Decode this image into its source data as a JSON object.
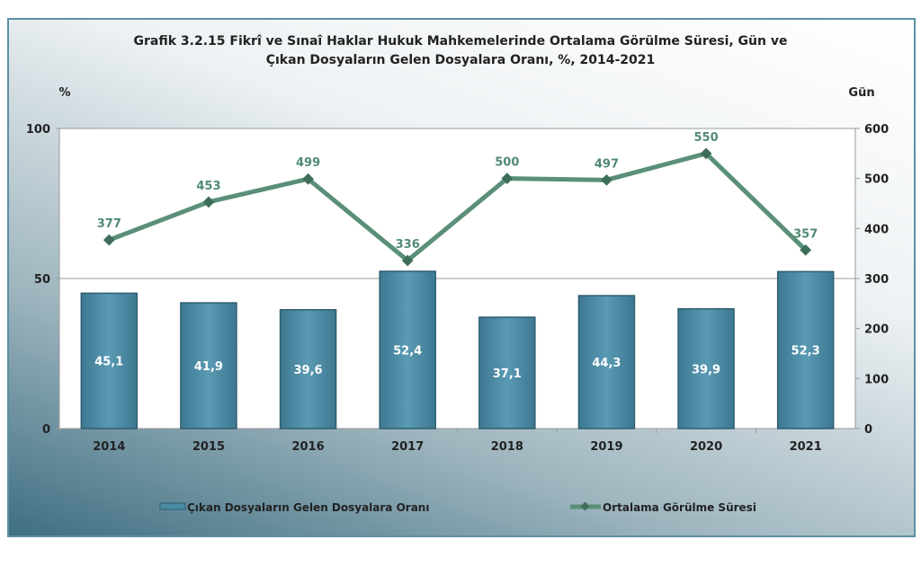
{
  "chart_data": {
    "type": "bar+line",
    "title_line1": "Grafik 3.2.15 Fikrî ve Sınaî Haklar Hukuk Mahkemelerinde Ortalama Görülme Süresi, Gün ve",
    "title_line2": "Çıkan Dosyaların Gelen Dosyalara Oranı, %, 2014-2021",
    "left_axis_label": "%",
    "right_axis_label": "Gün",
    "left_ylim": [
      0,
      100
    ],
    "right_ylim": [
      0,
      600
    ],
    "left_ticks": [
      "0",
      "50",
      "100"
    ],
    "right_ticks": [
      "0",
      "100",
      "200",
      "300",
      "400",
      "500",
      "600"
    ],
    "categories": [
      "2014",
      "2015",
      "2016",
      "2017",
      "2018",
      "2019",
      "2020",
      "2021"
    ],
    "series": [
      {
        "name": "Çıkan Dosyaların Gelen Dosyalara Oranı",
        "type": "bar",
        "axis": "left",
        "values": [
          45.1,
          41.9,
          39.6,
          52.4,
          37.1,
          44.3,
          39.9,
          52.3
        ],
        "labels": [
          "45,1",
          "41,9",
          "39,6",
          "52,4",
          "37,1",
          "44,3",
          "39,9",
          "52,3"
        ],
        "color": "#4a8ba4"
      },
      {
        "name": "Ortalama Görülme Süresi",
        "type": "line",
        "axis": "right",
        "values": [
          377,
          453,
          499,
          336,
          500,
          497,
          550,
          357
        ],
        "color": "#5a8f78"
      }
    ],
    "legend_position": "bottom"
  }
}
